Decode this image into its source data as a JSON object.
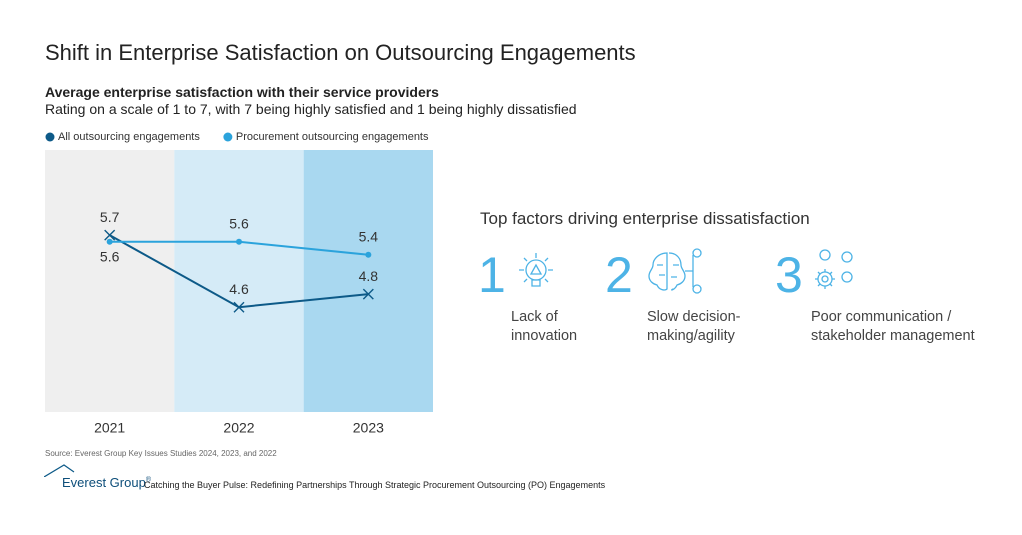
{
  "page_title": "Shift in Enterprise Satisfaction on Outsourcing Engagements",
  "chart_data": {
    "type": "line",
    "title": "Average enterprise satisfaction with their service providers",
    "subtitle": "Rating on a scale of 1 to 7, with 7 being highly satisfied and 1 being highly dissatisfied",
    "categories": [
      "2021",
      "2022",
      "2023"
    ],
    "band_colors": [
      "#efefef",
      "#d5ebf7",
      "#a9d8f0"
    ],
    "series": [
      {
        "name": "All outsourcing engagements",
        "color": "#0d5a88",
        "marker": "x",
        "values": [
          5.7,
          4.6,
          4.8
        ]
      },
      {
        "name": "Procurement outsourcing engagements",
        "color": "#2ba3dc",
        "marker": "o",
        "values": [
          5.6,
          5.6,
          5.4
        ]
      }
    ],
    "ylim": [
      3,
      7
    ],
    "grid": false,
    "legend": "top-left"
  },
  "factors": {
    "title": "Top factors driving enterprise dissatisfaction",
    "items": [
      {
        "number": "1",
        "label": "Lack of innovation"
      },
      {
        "number": "2",
        "label": "Slow decision-making/agility"
      },
      {
        "number": "3",
        "label": "Poor communication / stakeholder management"
      }
    ]
  },
  "footer": {
    "source": "Source: Everest Group Key Issues Studies 2024, 2023, and 2022",
    "brand": "Everest Group",
    "brand_mark": "®",
    "report": "Catching the Buyer Pulse: Redefining Partnerships Through Strategic Procurement Outsourcing (PO) Engagements"
  }
}
